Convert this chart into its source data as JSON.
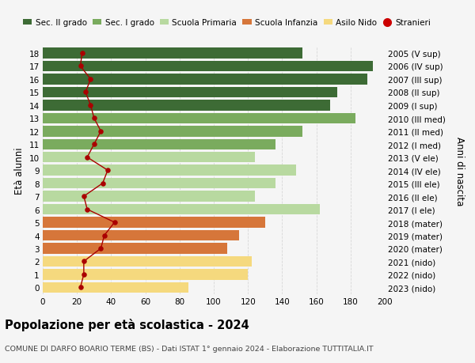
{
  "ages": [
    18,
    17,
    16,
    15,
    14,
    13,
    12,
    11,
    10,
    9,
    8,
    7,
    6,
    5,
    4,
    3,
    2,
    1,
    0
  ],
  "anni_nascita": [
    "2005 (V sup)",
    "2006 (IV sup)",
    "2007 (III sup)",
    "2008 (II sup)",
    "2009 (I sup)",
    "2010 (III med)",
    "2011 (II med)",
    "2012 (I med)",
    "2013 (V ele)",
    "2014 (IV ele)",
    "2015 (III ele)",
    "2016 (II ele)",
    "2017 (I ele)",
    "2018 (mater)",
    "2019 (mater)",
    "2020 (mater)",
    "2021 (nido)",
    "2022 (nido)",
    "2023 (nido)"
  ],
  "bar_values": [
    152,
    193,
    190,
    172,
    168,
    183,
    152,
    136,
    124,
    148,
    136,
    124,
    162,
    130,
    115,
    108,
    122,
    120,
    85
  ],
  "stranieri": [
    23,
    22,
    28,
    25,
    28,
    30,
    34,
    30,
    26,
    38,
    35,
    24,
    26,
    42,
    36,
    34,
    24,
    24,
    22
  ],
  "bar_colors": [
    "#3d6b35",
    "#3d6b35",
    "#3d6b35",
    "#3d6b35",
    "#3d6b35",
    "#7aab5e",
    "#7aab5e",
    "#7aab5e",
    "#b8d9a0",
    "#b8d9a0",
    "#b8d9a0",
    "#b8d9a0",
    "#b8d9a0",
    "#d6763a",
    "#d6763a",
    "#d6763a",
    "#f5d97e",
    "#f5d97e",
    "#f5d97e"
  ],
  "legend_labels": [
    "Sec. II grado",
    "Sec. I grado",
    "Scuola Primaria",
    "Scuola Infanzia",
    "Asilo Nido",
    "Stranieri"
  ],
  "legend_colors": [
    "#3d6b35",
    "#7aab5e",
    "#b8d9a0",
    "#d6763a",
    "#f5d97e",
    "#cc0000"
  ],
  "stranieri_color": "#aa0000",
  "title": "Popolazione per età scolastica - 2024",
  "subtitle": "COMUNE DI DARFO BOARIO TERME (BS) - Dati ISTAT 1° gennaio 2024 - Elaborazione TUTTITALIA.IT",
  "ylabel": "Età alunni",
  "ylabel2": "Anni di nascita",
  "xlim": [
    0,
    200
  ],
  "xticks": [
    0,
    20,
    40,
    60,
    80,
    100,
    120,
    140,
    160,
    180,
    200
  ],
  "bg_color": "#f5f5f5",
  "grid_color": "#d8d8d8"
}
